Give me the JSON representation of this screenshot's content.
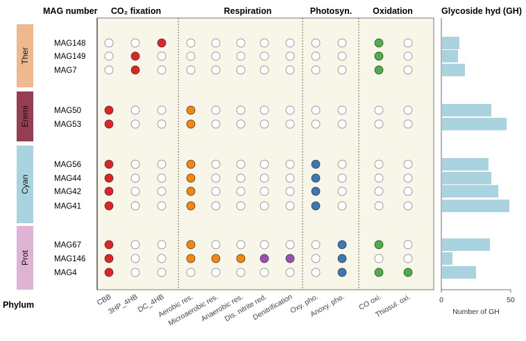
{
  "headers": {
    "mag_number": "MAG number",
    "phylum": "Phylum",
    "gh_title": "Glycoside hyd (GH)",
    "gh_xlabel": "Number of GH"
  },
  "groups": [
    {
      "name": "CO₂ fixation",
      "first_col": 0,
      "last_col": 2
    },
    {
      "name": "Respiration",
      "first_col": 3,
      "last_col": 7
    },
    {
      "name": "Photosyn.",
      "first_col": 8,
      "last_col": 9
    },
    {
      "name": "Oxidation",
      "first_col": 10,
      "last_col": 11
    }
  ],
  "columns": [
    "CBB",
    "3HP_4HB",
    "DC_4HB",
    "Aerobic res.",
    "Microaerobic res.",
    "Anaerobic res.",
    "Dis. nitrite red.",
    "Denitrification",
    "Oxy. pho.",
    "Anoxy. pho.",
    "CO oxi.",
    "Thiosul. oxi."
  ],
  "column_colors": [
    "#e02424",
    "#e02424",
    "#e02424",
    "#f5870f",
    "#f5870f",
    "#f5870f",
    "#9b4fb3",
    "#9b4fb3",
    "#3b78b4",
    "#3b78b4",
    "#4daf4a",
    "#4daf4a"
  ],
  "phyla": [
    {
      "label": "Ther",
      "color": "#eeb98f",
      "rows": [
        0,
        2
      ]
    },
    {
      "label": "Eremi",
      "color": "#963d52",
      "rows": [
        3,
        4
      ]
    },
    {
      "label": "Cyan",
      "color": "#a8d3df",
      "rows": [
        5,
        8
      ]
    },
    {
      "label": "Prot",
      "color": "#dfb3d3",
      "rows": [
        9,
        11
      ]
    }
  ],
  "chart_data": [
    {
      "type": "table",
      "title": "",
      "rows": [
        {
          "mag": "MAG148",
          "present": [
            0,
            0,
            1,
            0,
            0,
            0,
            0,
            0,
            0,
            0,
            1,
            0
          ]
        },
        {
          "mag": "MAG149",
          "present": [
            0,
            1,
            0,
            0,
            0,
            0,
            0,
            0,
            0,
            0,
            1,
            0
          ]
        },
        {
          "mag": "MAG7",
          "present": [
            0,
            1,
            0,
            0,
            0,
            0,
            0,
            0,
            0,
            0,
            1,
            0
          ]
        },
        {
          "mag": "MAG50",
          "present": [
            1,
            0,
            0,
            1,
            0,
            0,
            0,
            0,
            0,
            0,
            0,
            0
          ]
        },
        {
          "mag": "MAG53",
          "present": [
            1,
            0,
            0,
            1,
            0,
            0,
            0,
            0,
            0,
            0,
            0,
            0
          ]
        },
        {
          "mag": "MAG56",
          "present": [
            1,
            0,
            0,
            1,
            0,
            0,
            0,
            0,
            1,
            0,
            0,
            0
          ]
        },
        {
          "mag": "MAG44",
          "present": [
            1,
            0,
            0,
            1,
            0,
            0,
            0,
            0,
            1,
            0,
            0,
            0
          ]
        },
        {
          "mag": "MAG42",
          "present": [
            1,
            0,
            0,
            1,
            0,
            0,
            0,
            0,
            1,
            0,
            0,
            0
          ]
        },
        {
          "mag": "MAG41",
          "present": [
            1,
            0,
            0,
            1,
            0,
            0,
            0,
            0,
            1,
            0,
            0,
            0
          ]
        },
        {
          "mag": "MAG67",
          "present": [
            1,
            0,
            0,
            1,
            0,
            0,
            0,
            0,
            0,
            1,
            1,
            0
          ]
        },
        {
          "mag": "MAG146",
          "present": [
            1,
            0,
            0,
            1,
            1,
            1,
            1,
            1,
            0,
            1,
            0,
            0
          ]
        },
        {
          "mag": "MAG4",
          "present": [
            1,
            0,
            0,
            0,
            0,
            0,
            0,
            0,
            0,
            1,
            1,
            1
          ]
        }
      ]
    },
    {
      "type": "bar",
      "orientation": "horizontal",
      "title": "Glycoside hyd (GH)",
      "xlabel": "Number of GH",
      "xlim": [
        0,
        50
      ],
      "xticks": [
        0,
        50
      ],
      "bar_color": "#a8d3df",
      "categories": [
        "MAG148",
        "MAG149",
        "MAG7",
        "MAG50",
        "MAG53",
        "MAG56",
        "MAG44",
        "MAG42",
        "MAG41",
        "MAG67",
        "MAG146",
        "MAG4"
      ],
      "values": [
        13,
        12,
        17,
        36,
        47,
        34,
        36,
        41,
        49,
        35,
        8,
        25
      ]
    }
  ]
}
